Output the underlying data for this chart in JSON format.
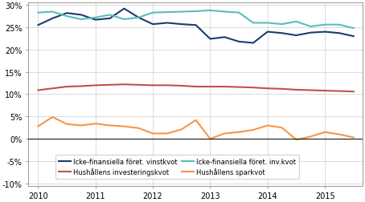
{
  "ylim": [
    -0.105,
    0.305
  ],
  "xlim": [
    2009.83,
    2015.66
  ],
  "xticks": [
    2010,
    2011,
    2012,
    2013,
    2014,
    2015
  ],
  "yticks": [
    -0.1,
    -0.05,
    0.0,
    0.05,
    0.1,
    0.15,
    0.2,
    0.25,
    0.3
  ],
  "series": {
    "vinstkvot": {
      "color": "#1a3d6e",
      "label": "Icke-finansiella föret. vinstkvot",
      "linewidth": 1.5,
      "data_x": [
        2010.0,
        2010.25,
        2010.5,
        2010.75,
        2011.0,
        2011.25,
        2011.5,
        2011.75,
        2012.0,
        2012.25,
        2012.5,
        2012.75,
        2013.0,
        2013.25,
        2013.5,
        2013.75,
        2014.0,
        2014.25,
        2014.5,
        2014.75,
        2015.0,
        2015.25,
        2015.5
      ],
      "data_y": [
        0.255,
        0.27,
        0.282,
        0.278,
        0.267,
        0.27,
        0.292,
        0.272,
        0.257,
        0.26,
        0.257,
        0.255,
        0.224,
        0.228,
        0.218,
        0.215,
        0.24,
        0.237,
        0.232,
        0.238,
        0.24,
        0.237,
        0.23
      ]
    },
    "inv_kvot": {
      "color": "#5bbcbc",
      "label": "Icke-finansiella föret. inv.kvot",
      "linewidth": 1.5,
      "data_x": [
        2010.0,
        2010.25,
        2010.5,
        2010.75,
        2011.0,
        2011.25,
        2011.5,
        2011.75,
        2012.0,
        2012.25,
        2012.5,
        2012.75,
        2013.0,
        2013.25,
        2013.5,
        2013.75,
        2014.0,
        2014.25,
        2014.5,
        2014.75,
        2015.0,
        2015.25,
        2015.5
      ],
      "data_y": [
        0.283,
        0.285,
        0.275,
        0.268,
        0.272,
        0.278,
        0.268,
        0.272,
        0.283,
        0.284,
        0.285,
        0.286,
        0.288,
        0.285,
        0.283,
        0.26,
        0.26,
        0.257,
        0.263,
        0.252,
        0.256,
        0.256,
        0.248
      ]
    },
    "hush_inv": {
      "color": "#c0514d",
      "label": "Hushållens investeringskvot",
      "linewidth": 1.5,
      "data_x": [
        2010.0,
        2010.25,
        2010.5,
        2010.75,
        2011.0,
        2011.25,
        2011.5,
        2011.75,
        2012.0,
        2012.25,
        2012.5,
        2012.75,
        2013.0,
        2013.25,
        2013.5,
        2013.75,
        2014.0,
        2014.25,
        2014.5,
        2014.75,
        2015.0,
        2015.25,
        2015.5
      ],
      "data_y": [
        0.109,
        0.113,
        0.117,
        0.118,
        0.12,
        0.121,
        0.122,
        0.121,
        0.12,
        0.12,
        0.119,
        0.117,
        0.117,
        0.117,
        0.116,
        0.115,
        0.113,
        0.112,
        0.11,
        0.109,
        0.108,
        0.107,
        0.106
      ]
    },
    "hush_spar": {
      "color": "#f79646",
      "label": "Hushållens sparkvot",
      "linewidth": 1.5,
      "data_x": [
        2010.0,
        2010.25,
        2010.5,
        2010.75,
        2011.0,
        2011.25,
        2011.5,
        2011.75,
        2012.0,
        2012.25,
        2012.5,
        2012.75,
        2013.0,
        2013.25,
        2013.5,
        2013.75,
        2014.0,
        2014.25,
        2014.5,
        2014.75,
        2015.0,
        2015.25,
        2015.5
      ],
      "data_y": [
        0.028,
        0.049,
        0.033,
        0.03,
        0.034,
        0.03,
        0.028,
        0.024,
        0.012,
        0.012,
        0.021,
        0.042,
        0.0,
        0.012,
        0.015,
        0.02,
        0.03,
        0.025,
        -0.002,
        0.005,
        0.015,
        0.01,
        0.003
      ]
    }
  },
  "legend_order": [
    0,
    2,
    1,
    3
  ],
  "legend_fontsize": 6.0,
  "grid_color": "#cccccc",
  "tick_fontsize": 7.0,
  "background_color": "#ffffff"
}
